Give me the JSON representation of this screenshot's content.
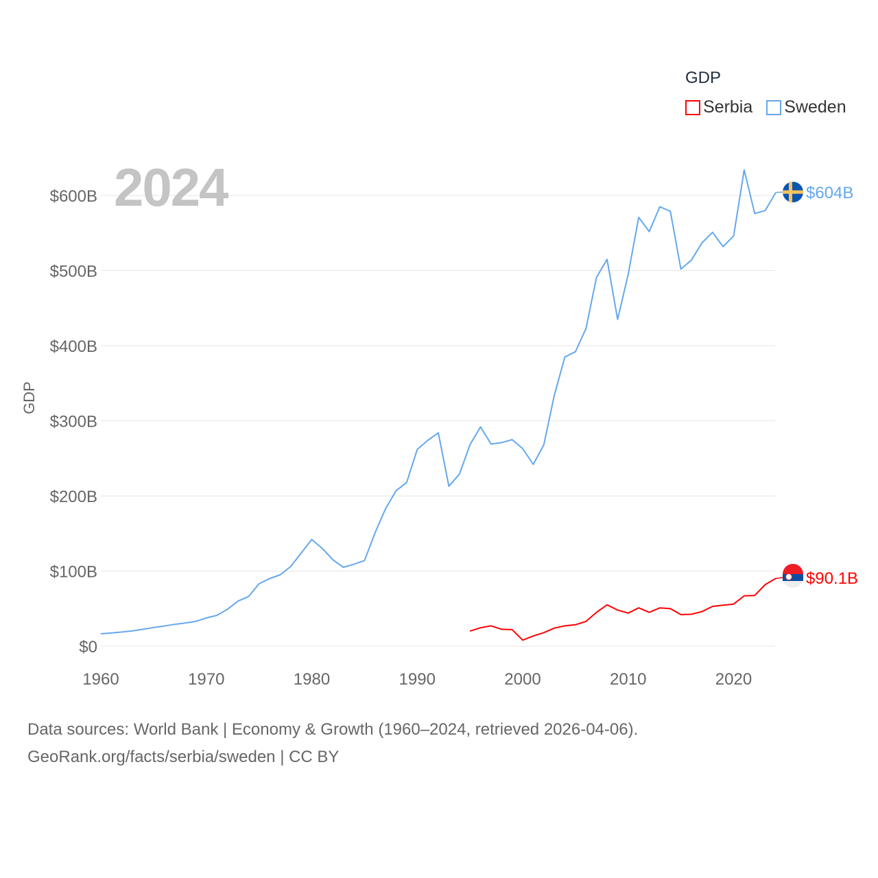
{
  "chart_data": {
    "type": "line",
    "title": "",
    "ylabel": "GDP",
    "xlabel": "",
    "ylim": [
      0,
      600
    ],
    "xlim": [
      1960,
      2024
    ],
    "yticks": [
      0,
      100,
      200,
      300,
      400,
      500,
      600
    ],
    "ytick_labels": [
      "$0",
      "$100B",
      "$200B",
      "$300B",
      "$400B",
      "$500B",
      "$600B"
    ],
    "xticks": [
      1960,
      1970,
      1980,
      1990,
      2000,
      2010,
      2020
    ],
    "xtick_labels": [
      "1960",
      "1970",
      "1980",
      "1990",
      "2000",
      "2010",
      "2020"
    ],
    "grid": true,
    "current_year": "2024",
    "legend": {
      "title": "GDP",
      "placement": "top-right"
    },
    "series": [
      {
        "name": "Serbia",
        "color": "#ff0000",
        "end_label": "$90.1B",
        "x": [
          1995,
          1996,
          1997,
          1998,
          1999,
          2000,
          2001,
          2002,
          2003,
          2004,
          2005,
          2006,
          2007,
          2008,
          2009,
          2010,
          2011,
          2012,
          2013,
          2014,
          2015,
          2016,
          2017,
          2018,
          2019,
          2020,
          2021,
          2022,
          2023,
          2024
        ],
        "values": [
          20,
          24.5,
          27,
          22.5,
          22,
          8,
          13.5,
          18,
          24,
          27,
          28.5,
          33,
          45,
          55,
          48,
          44,
          51,
          45,
          51,
          50,
          42,
          42.5,
          46,
          53,
          54.5,
          56,
          67,
          67.5,
          82,
          90.1
        ]
      },
      {
        "name": "Sweden",
        "color": "#64a7ec",
        "end_label": "$604B",
        "x": [
          1960,
          1961,
          1962,
          1963,
          1964,
          1965,
          1966,
          1967,
          1968,
          1969,
          1970,
          1971,
          1972,
          1973,
          1974,
          1975,
          1976,
          1977,
          1978,
          1979,
          1980,
          1981,
          1982,
          1983,
          1984,
          1985,
          1986,
          1987,
          1988,
          1989,
          1990,
          1991,
          1992,
          1993,
          1994,
          1995,
          1996,
          1997,
          1998,
          1999,
          2000,
          2001,
          2002,
          2003,
          2004,
          2005,
          2006,
          2007,
          2008,
          2009,
          2010,
          2011,
          2012,
          2013,
          2014,
          2015,
          2016,
          2017,
          2018,
          2019,
          2020,
          2021,
          2022,
          2023,
          2024
        ],
        "values": [
          16.4,
          17.5,
          18.8,
          20.3,
          22.5,
          24.8,
          26.8,
          29,
          30.8,
          33,
          37.5,
          41,
          49,
          60,
          66,
          83,
          90,
          95,
          106,
          124,
          142,
          130,
          115,
          105,
          109,
          114,
          151,
          183,
          207,
          218,
          262,
          274,
          284,
          213,
          229,
          268,
          292,
          269,
          271,
          275,
          263,
          242,
          268,
          334,
          385,
          392,
          423,
          491,
          515,
          435,
          495,
          571,
          552,
          585,
          579,
          502,
          514,
          537,
          551,
          532,
          546,
          634,
          576,
          580,
          604
        ]
      }
    ]
  },
  "footer": {
    "line1": "Data sources: World Bank | Economy & Growth (1960–2024, retrieved 2026-04-06).",
    "line2": "GeoRank.org/facts/serbia/sweden | CC BY"
  }
}
